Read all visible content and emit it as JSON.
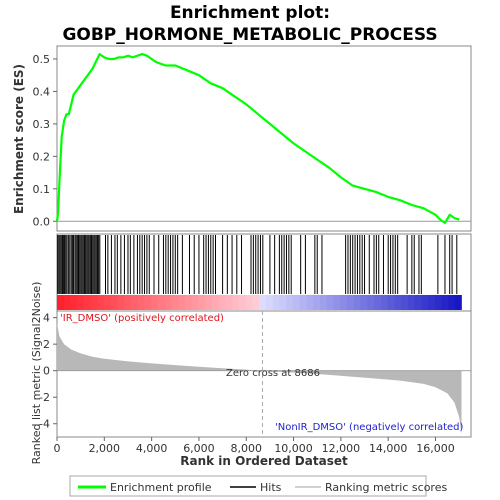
{
  "chart_data": {
    "type": "line",
    "title_line1": "Enrichment plot:",
    "title_line2": "GOBP_HORMONE_METABOLIC_PROCESS",
    "xlabel": "Rank in Ordered Dataset",
    "es_ylabel": "Enrichment score (ES)",
    "metric_ylabel": "Ranked list metric (Signal2Noise)",
    "xlim": [
      0,
      17500
    ],
    "es_ylim": [
      -0.03,
      0.54
    ],
    "metric_ylim": [
      -5,
      4.5
    ],
    "x_ticks": [
      0,
      2000,
      4000,
      6000,
      8000,
      10000,
      12000,
      14000,
      16000
    ],
    "x_tick_labels": [
      "0",
      "2,000",
      "4,000",
      "6,000",
      "8,000",
      "10,000",
      "12,000",
      "14,000",
      "16,000"
    ],
    "es_ticks": [
      0.0,
      0.1,
      0.2,
      0.3,
      0.4,
      0.5
    ],
    "es_tick_labels": [
      "0.0",
      "0.1",
      "0.2",
      "0.3",
      "0.4",
      "0.5"
    ],
    "metric_ticks": [
      -4,
      -2,
      0,
      2,
      4
    ],
    "metric_tick_labels": [
      "-4",
      "-2",
      "0",
      "2",
      "4"
    ],
    "enrichment_profile": {
      "x": [
        0,
        50,
        100,
        200,
        300,
        400,
        500,
        700,
        900,
        1100,
        1300,
        1500,
        1700,
        1800,
        2000,
        2200,
        2400,
        2600,
        2800,
        3000,
        3200,
        3400,
        3600,
        3800,
        4000,
        4200,
        4400,
        4600,
        4800,
        5000,
        5500,
        6000,
        6500,
        7000,
        7500,
        8000,
        8500,
        9000,
        9500,
        10000,
        10500,
        11000,
        11500,
        12000,
        12500,
        13000,
        13500,
        14000,
        14500,
        15000,
        15500,
        16000,
        16200,
        16400,
        16600,
        16800,
        17000
      ],
      "y": [
        0.0,
        0.03,
        0.12,
        0.26,
        0.31,
        0.33,
        0.33,
        0.39,
        0.41,
        0.43,
        0.45,
        0.47,
        0.5,
        0.515,
        0.505,
        0.5,
        0.5,
        0.505,
        0.505,
        0.51,
        0.505,
        0.51,
        0.515,
        0.51,
        0.5,
        0.49,
        0.485,
        0.48,
        0.48,
        0.48,
        0.465,
        0.45,
        0.425,
        0.41,
        0.385,
        0.36,
        0.33,
        0.3,
        0.27,
        0.24,
        0.215,
        0.19,
        0.165,
        0.135,
        0.11,
        0.1,
        0.09,
        0.075,
        0.065,
        0.05,
        0.04,
        0.02,
        0.005,
        -0.005,
        0.02,
        0.01,
        0.005
      ]
    },
    "hits": [
      30,
      80,
      130,
      180,
      230,
      270,
      320,
      370,
      420,
      480,
      540,
      600,
      650,
      700,
      760,
      810,
      860,
      910,
      960,
      1010,
      1060,
      1110,
      1160,
      1210,
      1260,
      1310,
      1360,
      1410,
      1460,
      1510,
      1560,
      1610,
      1660,
      1710,
      1760,
      1810,
      2050,
      2150,
      2300,
      2450,
      2550,
      2700,
      2850,
      3000,
      3100,
      3250,
      3400,
      3500,
      3600,
      3700,
      3800,
      3900,
      4100,
      4300,
      4500,
      4600,
      4700,
      4800,
      4900,
      5000,
      5100,
      5300,
      5600,
      5800,
      6000,
      6200,
      6300,
      6400,
      6500,
      6600,
      6700,
      7000,
      7200,
      7400,
      7600,
      7800,
      8200,
      8300,
      8400,
      8500,
      8600,
      8700,
      9000,
      9200,
      9400,
      9500,
      9600,
      9700,
      9800,
      9900,
      10300,
      10500,
      10900,
      11000,
      11200,
      12200,
      12300,
      12400,
      12500,
      12600,
      12700,
      12800,
      12900,
      13000,
      13200,
      13400,
      13500,
      13600,
      13800,
      14000,
      14100,
      14200,
      14300,
      14400,
      14800,
      15000,
      15100,
      15300,
      15400,
      16100,
      16400,
      16600,
      16700,
      16900
    ],
    "zero_cross_rank": 8686,
    "zero_cross_label": "Zero cross at 8686",
    "pos_label": "'IR_DMSO' (positively correlated)",
    "neg_label": "'NonIR_DMSO' (negatively correlated)",
    "metric_profile": {
      "x": [
        0,
        100,
        300,
        600,
        1000,
        1500,
        2000,
        3000,
        4000,
        5000,
        6000,
        7000,
        8000,
        8686,
        9500,
        10500,
        11500,
        12500,
        13500,
        14500,
        15500,
        16000,
        16500,
        16800,
        17000,
        17100
      ],
      "y": [
        3.6,
        2.6,
        2.0,
        1.6,
        1.3,
        1.05,
        0.9,
        0.7,
        0.55,
        0.42,
        0.3,
        0.18,
        0.08,
        0.0,
        -0.1,
        -0.2,
        -0.32,
        -0.45,
        -0.6,
        -0.75,
        -1.0,
        -1.25,
        -1.7,
        -2.4,
        -3.5,
        -4.8
      ]
    },
    "legend": {
      "profile_label": "Enrichment profile",
      "hits_label": "Hits",
      "metric_label": "Ranking metric scores",
      "profile_color": "#00ff00",
      "hits_color": "#000000",
      "metric_color": "#c0c0c0"
    },
    "colors": {
      "profile": "#00ff00",
      "pos_text": "#e0141e",
      "neg_text": "#2222cc",
      "metric_fill": "#b8b8b8"
    }
  }
}
